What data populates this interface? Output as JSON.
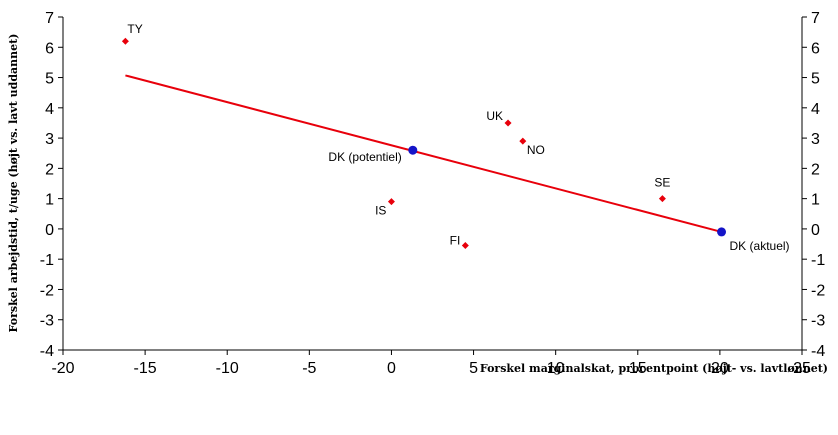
{
  "chart_data": {
    "type": "scatter",
    "title": "",
    "xlabel": "Forskel marginalskat, procentpoint (højt- vs. lavtlønnet)",
    "ylabel": "Forskel arbejdstid, t/uge (højt vs. lavt uddannet)",
    "xlim": [
      -20,
      25
    ],
    "ylim": [
      -4,
      7
    ],
    "x_ticks": [
      -20,
      -15,
      -10,
      -5,
      0,
      5,
      10,
      15,
      20,
      25
    ],
    "y_ticks": [
      -4,
      -3,
      -2,
      -1,
      0,
      1,
      2,
      3,
      4,
      5,
      6,
      7
    ],
    "grid": false,
    "secondary_y_axis": true,
    "colors": {
      "countries": "#e8000b",
      "denmark": "#1414c8",
      "trend": "#e8000b"
    },
    "series": [
      {
        "name": "",
        "marker": "diamond",
        "points": [
          {
            "label": "TY",
            "x": -16.2,
            "y": 6.2
          },
          {
            "label": "UK",
            "x": 7.1,
            "y": 3.5
          },
          {
            "label": "NO",
            "x": 8.0,
            "y": 2.9
          },
          {
            "label": "SE",
            "x": 16.5,
            "y": 1.0
          },
          {
            "label": "IS",
            "x": 0.0,
            "y": 0.9
          },
          {
            "label": "FI",
            "x": 4.5,
            "y": -0.55
          }
        ]
      },
      {
        "name": "",
        "marker": "circle",
        "points": [
          {
            "label": "DK (potentiel)",
            "x": 1.3,
            "y": 2.6
          },
          {
            "label": "DK (aktuel)",
            "x": 20.1,
            "y": -0.1
          }
        ]
      }
    ],
    "trendline": {
      "x": [
        -16.2,
        20.1
      ],
      "y": [
        5.07,
        -0.1
      ]
    }
  }
}
